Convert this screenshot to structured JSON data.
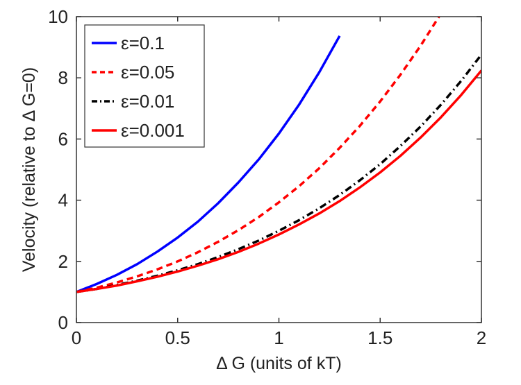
{
  "chart_data": {
    "type": "line",
    "xlabel": "Δ G (units of kT)",
    "ylabel": "Velocity (relative to Δ G=0)",
    "xlim": [
      0,
      2
    ],
    "ylim": [
      0,
      10
    ],
    "xticks": [
      "0",
      "0.5",
      "1",
      "1.5",
      "2"
    ],
    "yticks": [
      "0",
      "2",
      "4",
      "6",
      "8",
      "10"
    ],
    "grid": false,
    "legend_position": "top-left",
    "x": [
      0,
      0.1,
      0.2,
      0.3,
      0.4,
      0.5,
      0.6,
      0.7,
      0.8,
      0.9,
      1.0,
      1.1,
      1.2,
      1.3,
      1.4,
      1.5,
      1.6,
      1.7,
      1.8,
      1.9,
      2.0
    ],
    "series": [
      {
        "name": "ε=0.1",
        "color": "#0000ff",
        "style": "solid",
        "values": [
          1.0,
          1.26,
          1.56,
          1.91,
          2.32,
          2.78,
          3.3,
          3.9,
          4.58,
          5.33,
          6.18,
          7.13,
          8.19,
          9.37,
          null,
          null,
          null,
          null,
          null,
          null,
          null
        ]
      },
      {
        "name": "ε=0.05",
        "color": "#ff0000",
        "style": "dashed",
        "values": [
          1.0,
          1.14,
          1.31,
          1.51,
          1.74,
          2.0,
          2.3,
          2.64,
          3.02,
          3.45,
          3.93,
          4.46,
          5.05,
          5.71,
          6.43,
          7.23,
          8.1,
          9.05,
          10.1,
          null,
          null
        ]
      },
      {
        "name": "ε=0.01",
        "color": "#000000",
        "style": "dashdot",
        "values": [
          1.0,
          1.1,
          1.23,
          1.37,
          1.53,
          1.71,
          1.91,
          2.14,
          2.4,
          2.68,
          3.0,
          3.35,
          3.74,
          4.17,
          4.65,
          5.18,
          5.77,
          6.41,
          7.12,
          7.9,
          8.76
        ]
      },
      {
        "name": "ε=0.001",
        "color": "#ff0000",
        "style": "solid",
        "values": [
          1.0,
          1.1,
          1.21,
          1.35,
          1.5,
          1.67,
          1.86,
          2.07,
          2.31,
          2.58,
          2.88,
          3.21,
          3.57,
          3.97,
          4.42,
          4.91,
          5.45,
          6.05,
          6.71,
          7.44,
          8.24
        ]
      }
    ]
  }
}
